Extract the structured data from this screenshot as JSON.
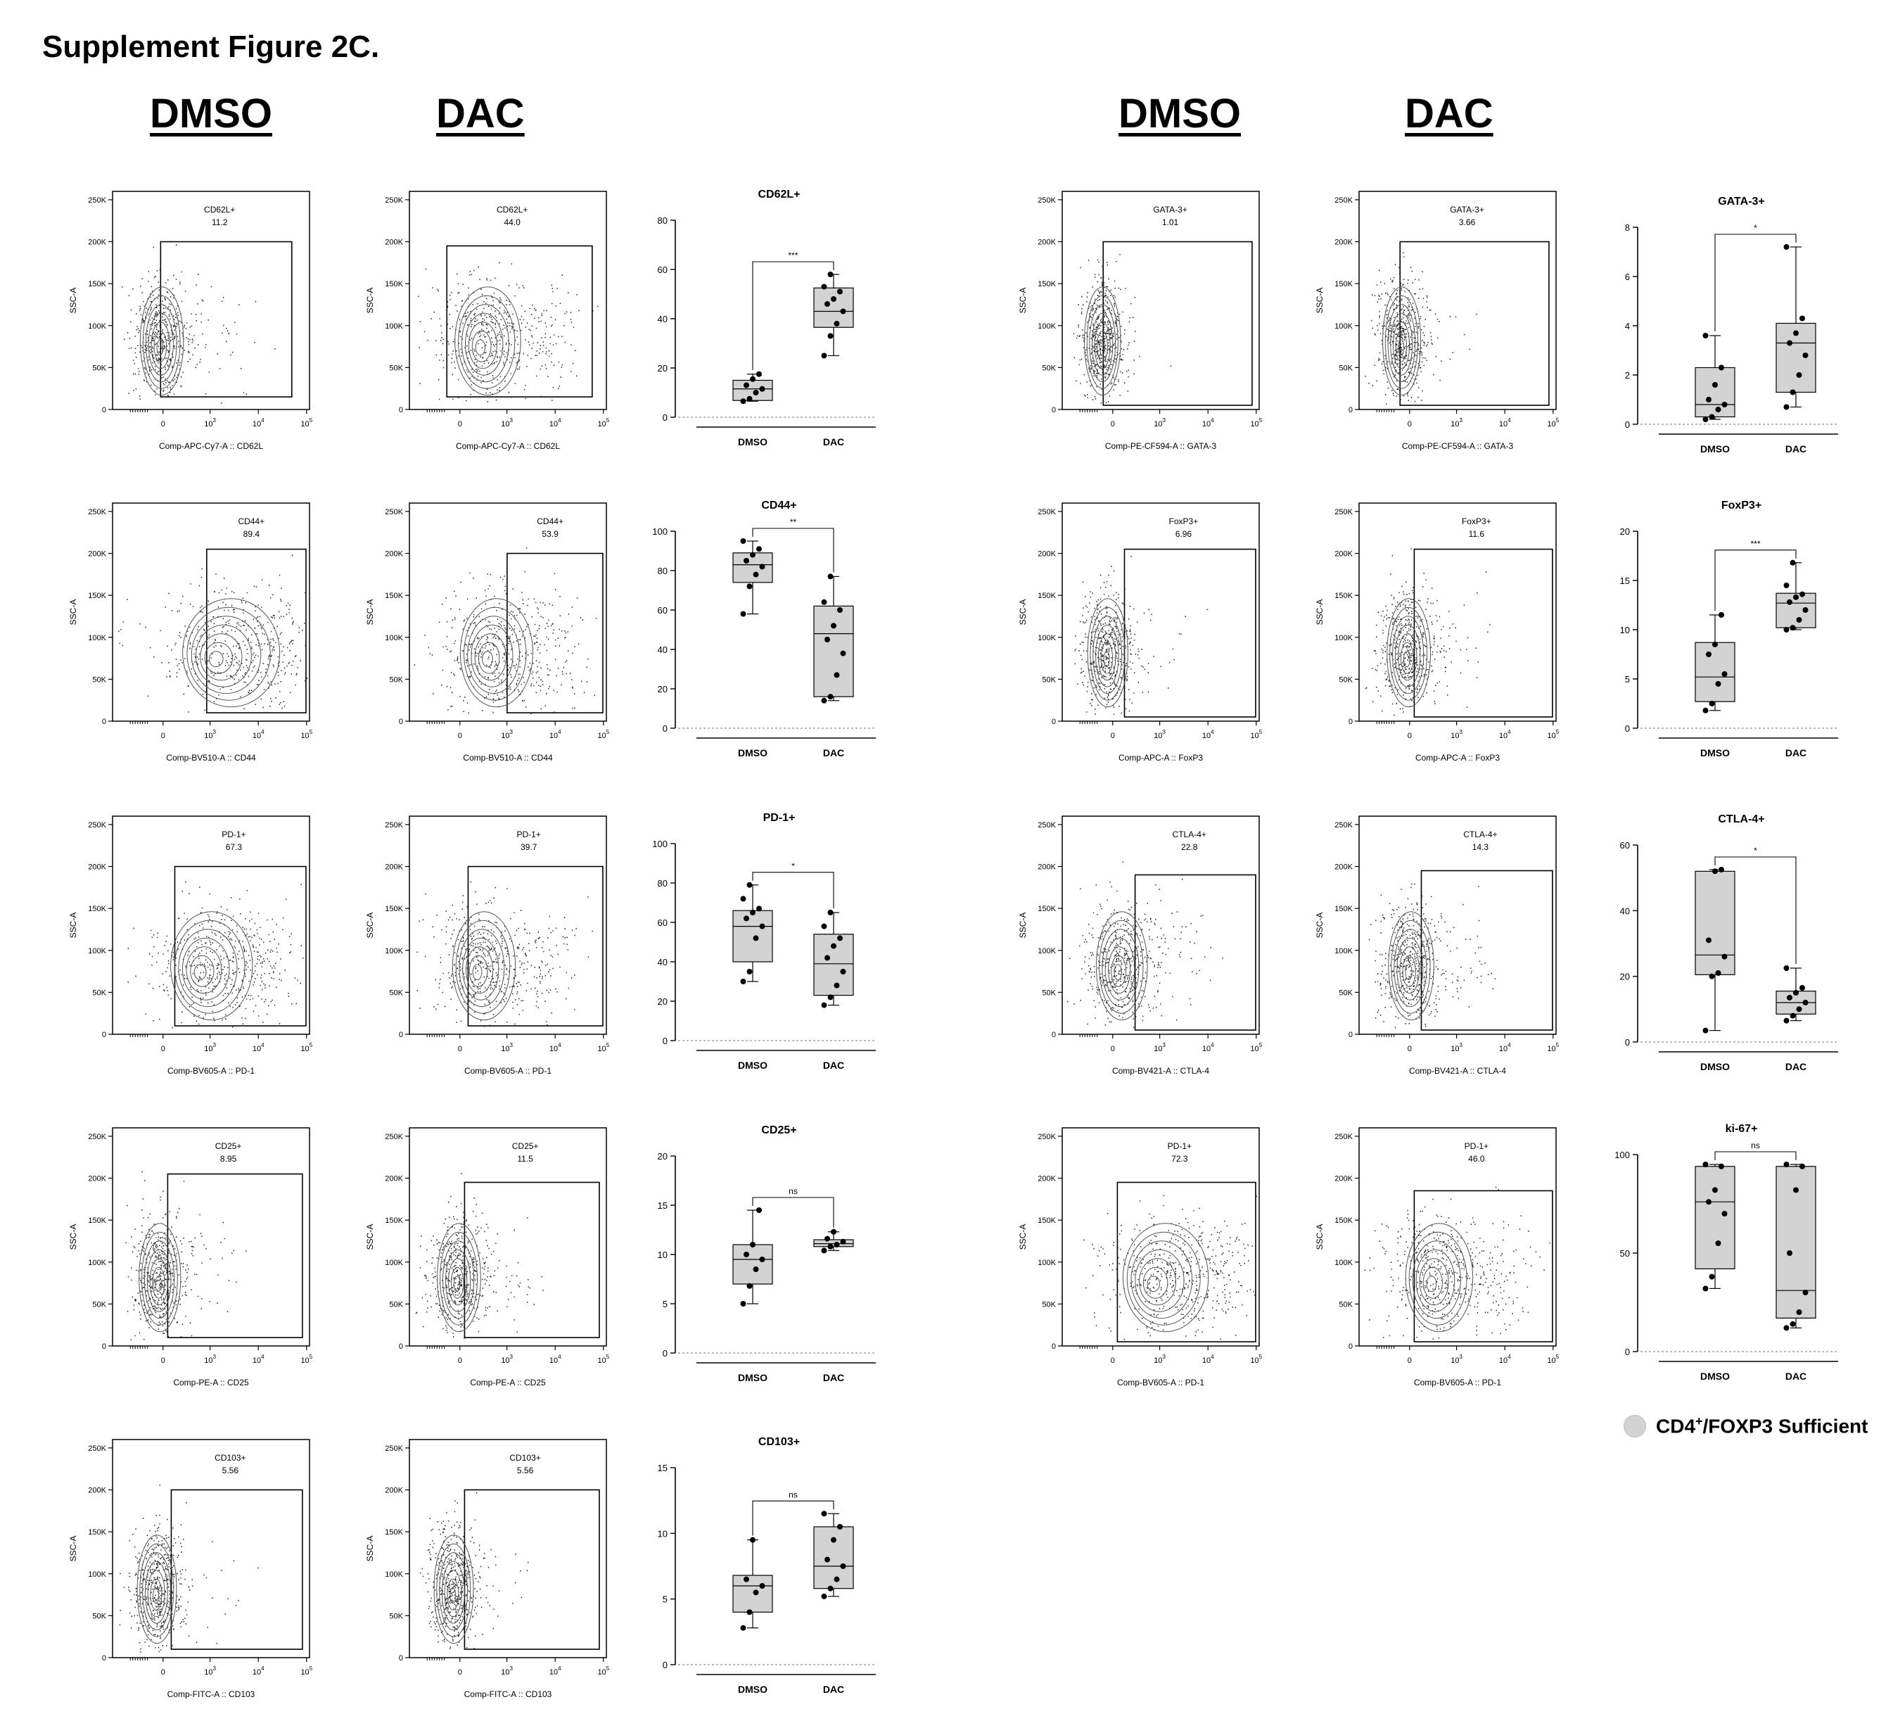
{
  "figure_title": "Supplement Figure 2C.",
  "column_headers": {
    "left_dmso": "DMSO",
    "left_dac": "DAC",
    "right_dmso": "DMSO",
    "right_dac": "DAC"
  },
  "legend": {
    "label_pre": "CD4",
    "label_sup": "+",
    "label_post": "/FOXP3 Sufficient",
    "color": "#d3d3d3"
  },
  "colors": {
    "box_fill": "#d3d3d3",
    "ink": "#000000",
    "contour": "#555555"
  },
  "flow_common": {
    "ylabel": "SSC-A",
    "y_ticks": [
      "0",
      "50K",
      "100K",
      "150K",
      "200K",
      "250K"
    ],
    "x_ticks": [
      {
        "base": "0",
        "exp": ""
      },
      {
        "base": "10",
        "exp": "3"
      },
      {
        "base": "10",
        "exp": "4"
      },
      {
        "base": "10",
        "exp": "5"
      }
    ]
  },
  "chart_data": [
    {
      "type": "box-dotplot",
      "title": "CD62L+",
      "categories": [
        "DMSO",
        "DAC"
      ],
      "ylim": [
        0,
        80
      ],
      "y_ticks": [
        0,
        20,
        40,
        60,
        80
      ],
      "significance": "***",
      "series": [
        {
          "name": "DMSO",
          "values": [
            6.5,
            7.5,
            10.0,
            11.5,
            13.0,
            15.5,
            17.5
          ],
          "box": {
            "min": 6.5,
            "q1": 6.8,
            "median": 11.5,
            "q3": 15.0,
            "max": 17.5
          }
        },
        {
          "name": "DAC",
          "values": [
            25.0,
            33.0,
            38.0,
            43.0,
            46.0,
            48.0,
            51.0,
            53.0,
            58.0
          ],
          "box": {
            "min": 25.0,
            "q1": 36.5,
            "median": 43.0,
            "q3": 52.5,
            "max": 58.0
          }
        }
      ]
    },
    {
      "type": "box-dotplot",
      "title": "CD44+",
      "categories": [
        "DMSO",
        "DAC"
      ],
      "ylim": [
        0,
        100
      ],
      "y_ticks": [
        0,
        20,
        40,
        60,
        80,
        100
      ],
      "significance": "**",
      "series": [
        {
          "name": "DMSO",
          "values": [
            58.0,
            72.0,
            78.0,
            82.0,
            85.0,
            88.0,
            91.0,
            95.0
          ],
          "box": {
            "min": 58.0,
            "q1": 74.0,
            "median": 83.0,
            "q3": 89.0,
            "max": 95.0
          }
        },
        {
          "name": "DAC",
          "values": [
            14.0,
            16.0,
            27.0,
            38.0,
            45.0,
            52.0,
            60.0,
            64.0,
            77.0
          ],
          "box": {
            "min": 14.0,
            "q1": 16.0,
            "median": 48.0,
            "q3": 62.0,
            "max": 77.0
          }
        }
      ]
    },
    {
      "type": "box-dotplot",
      "title": "PD-1+",
      "categories": [
        "DMSO",
        "DAC"
      ],
      "ylim": [
        0,
        100
      ],
      "y_ticks": [
        0,
        20,
        40,
        60,
        80,
        100
      ],
      "significance": "*",
      "series": [
        {
          "name": "DMSO",
          "values": [
            30.0,
            35.0,
            52.0,
            58.0,
            62.0,
            65.0,
            67.0,
            72.0,
            79.0
          ],
          "box": {
            "min": 30.0,
            "q1": 40.0,
            "median": 58.0,
            "q3": 66.0,
            "max": 79.0
          }
        },
        {
          "name": "DAC",
          "values": [
            18.0,
            22.0,
            28.0,
            35.0,
            42.0,
            48.0,
            52.0,
            58.0,
            65.0
          ],
          "box": {
            "min": 18.0,
            "q1": 23.0,
            "median": 39.0,
            "q3": 54.0,
            "max": 65.0
          }
        }
      ]
    },
    {
      "type": "box-dotplot",
      "title": "CD25+",
      "categories": [
        "DMSO",
        "DAC"
      ],
      "ylim": [
        0,
        20
      ],
      "y_ticks": [
        0,
        5,
        10,
        15,
        20
      ],
      "significance": "ns",
      "series": [
        {
          "name": "DMSO",
          "values": [
            5.0,
            6.8,
            8.5,
            9.5,
            10.0,
            11.0,
            14.5
          ],
          "box": {
            "min": 5.0,
            "q1": 7.0,
            "median": 9.5,
            "q3": 11.0,
            "max": 14.5
          }
        },
        {
          "name": "DAC",
          "values": [
            10.4,
            10.8,
            11.0,
            11.3,
            11.6,
            12.3
          ],
          "box": {
            "min": 10.4,
            "q1": 10.8,
            "median": 11.1,
            "q3": 11.5,
            "max": 12.3
          }
        }
      ]
    },
    {
      "type": "box-dotplot",
      "title": "CD103+",
      "categories": [
        "DMSO",
        "DAC"
      ],
      "ylim": [
        0,
        15
      ],
      "y_ticks": [
        0,
        5,
        10,
        15
      ],
      "significance": "ns",
      "series": [
        {
          "name": "DMSO",
          "values": [
            2.8,
            4.0,
            5.5,
            6.0,
            6.5,
            9.5
          ],
          "box": {
            "min": 2.8,
            "q1": 4.0,
            "median": 6.0,
            "q3": 6.8,
            "max": 9.5
          }
        },
        {
          "name": "DAC",
          "values": [
            5.2,
            5.8,
            6.5,
            7.5,
            8.0,
            9.5,
            10.5,
            11.5
          ],
          "box": {
            "min": 5.2,
            "q1": 5.8,
            "median": 7.5,
            "q3": 10.5,
            "max": 11.5
          }
        }
      ]
    },
    {
      "type": "box-dotplot",
      "title": "GATA-3+",
      "categories": [
        "DMSO",
        "DAC"
      ],
      "ylim": [
        0,
        8
      ],
      "y_ticks": [
        0,
        2,
        4,
        6,
        8
      ],
      "significance": "*",
      "series": [
        {
          "name": "DMSO",
          "values": [
            0.2,
            0.3,
            0.6,
            0.8,
            1.0,
            1.6,
            2.3,
            3.6
          ],
          "box": {
            "min": 0.2,
            "q1": 0.3,
            "median": 0.8,
            "q3": 2.3,
            "max": 3.6
          }
        },
        {
          "name": "DAC",
          "values": [
            0.7,
            1.3,
            2.0,
            2.8,
            3.3,
            3.7,
            4.3,
            7.2
          ],
          "box": {
            "min": 0.7,
            "q1": 1.3,
            "median": 3.3,
            "q3": 4.1,
            "max": 7.2
          }
        }
      ]
    },
    {
      "type": "box-dotplot",
      "title": "FoxP3+",
      "categories": [
        "DMSO",
        "DAC"
      ],
      "ylim": [
        0,
        20
      ],
      "y_ticks": [
        0,
        5,
        10,
        15,
        20
      ],
      "significance": "***",
      "series": [
        {
          "name": "DMSO",
          "values": [
            1.8,
            2.5,
            4.5,
            5.5,
            7.5,
            8.5,
            11.5
          ],
          "box": {
            "min": 1.8,
            "q1": 2.7,
            "median": 5.2,
            "q3": 8.7,
            "max": 11.5
          }
        },
        {
          "name": "DAC",
          "values": [
            10.0,
            10.2,
            11.0,
            12.0,
            12.8,
            13.3,
            13.6,
            14.5,
            16.8
          ],
          "box": {
            "min": 10.0,
            "q1": 10.2,
            "median": 12.7,
            "q3": 13.7,
            "max": 16.8
          }
        }
      ]
    },
    {
      "type": "box-dotplot",
      "title": "CTLA-4+",
      "categories": [
        "DMSO",
        "DAC"
      ],
      "ylim": [
        0,
        60
      ],
      "y_ticks": [
        0,
        20,
        40,
        60
      ],
      "significance": "*",
      "series": [
        {
          "name": "DMSO",
          "values": [
            3.5,
            20.0,
            21.0,
            26.0,
            31.0,
            52.0,
            52.5
          ],
          "box": {
            "min": 3.5,
            "q1": 20.5,
            "median": 26.5,
            "q3": 52.0,
            "max": 52.5
          }
        },
        {
          "name": "DAC",
          "values": [
            6.5,
            8.0,
            10.0,
            12.0,
            13.5,
            15.0,
            16.5,
            22.5
          ],
          "box": {
            "min": 6.5,
            "q1": 8.5,
            "median": 12.0,
            "q3": 15.5,
            "max": 22.5
          }
        }
      ]
    },
    {
      "type": "box-dotplot",
      "title": "ki-67+",
      "categories": [
        "DMSO",
        "DAC"
      ],
      "ylim": [
        0,
        100
      ],
      "y_ticks": [
        0,
        50,
        100
      ],
      "significance": "ns",
      "series": [
        {
          "name": "DMSO",
          "values": [
            32.0,
            38.0,
            55.0,
            70.0,
            76.0,
            82.0,
            94.0,
            95.0
          ],
          "box": {
            "min": 32.0,
            "q1": 42.0,
            "median": 76.0,
            "q3": 94.0,
            "max": 95.0
          }
        },
        {
          "name": "DAC",
          "values": [
            12.0,
            14.0,
            20.0,
            30.0,
            50.0,
            82.0,
            94.0,
            95.0
          ],
          "box": {
            "min": 12.0,
            "q1": 17.0,
            "median": 31.0,
            "q3": 94.0,
            "max": 95.0
          }
        }
      ]
    }
  ],
  "flow_plots": [
    {
      "condition": "DMSO",
      "gate_label": "CD62L+",
      "gate_value": "11.2",
      "xlabel": "Comp-APC-Cy7-A :: CD62L",
      "gate": {
        "x0": 0.8,
        "x1": 4.5,
        "y0": 15000,
        "y1": 200000
      }
    },
    {
      "condition": "DAC",
      "gate_label": "CD62L+",
      "gate_value": "44.0",
      "xlabel": "Comp-APC-Cy7-A :: CD62L",
      "gate": {
        "x0": 0.5,
        "x1": 4.6,
        "y0": 15000,
        "y1": 195000
      }
    },
    {
      "condition": "DMSO",
      "gate_label": "GATA-3+",
      "gate_value": "1.01",
      "xlabel": "Comp-PE-CF594-A :: GATA-3",
      "gate": {
        "x0": 0.6,
        "x1": 4.8,
        "y0": 5000,
        "y1": 200000
      }
    },
    {
      "condition": "DAC",
      "gate_label": "GATA-3+",
      "gate_value": "3.66",
      "xlabel": "Comp-PE-CF594-A :: GATA-3",
      "gate": {
        "x0": 0.6,
        "x1": 4.8,
        "y0": 5000,
        "y1": 200000
      }
    },
    {
      "condition": "DMSO",
      "gate_label": "CD44+",
      "gate_value": "89.4",
      "xlabel": "Comp-BV510-A :: CD44",
      "gate": {
        "x0": 2.1,
        "x1": 4.9,
        "y0": 10000,
        "y1": 205000
      }
    },
    {
      "condition": "DAC",
      "gate_label": "CD44+",
      "gate_value": "53.9",
      "xlabel": "Comp-BV510-A :: CD44",
      "gate": {
        "x0": 2.2,
        "x1": 4.9,
        "y0": 10000,
        "y1": 200000
      }
    },
    {
      "condition": "DMSO",
      "gate_label": "FoxP3+",
      "gate_value": "6.96",
      "xlabel": "Comp-APC-A :: FoxP3",
      "gate": {
        "x0": 1.2,
        "x1": 4.9,
        "y0": 5000,
        "y1": 205000
      }
    },
    {
      "condition": "DAC",
      "gate_label": "FoxP3+",
      "gate_value": "11.6",
      "xlabel": "Comp-APC-A :: FoxP3",
      "gate": {
        "x0": 1.0,
        "x1": 4.9,
        "y0": 5000,
        "y1": 205000
      }
    },
    {
      "condition": "DMSO",
      "gate_label": "PD-1+",
      "gate_value": "67.3",
      "xlabel": "Comp-BV605-A :: PD-1",
      "gate": {
        "x0": 1.2,
        "x1": 4.9,
        "y0": 10000,
        "y1": 200000
      }
    },
    {
      "condition": "DAC",
      "gate_label": "PD-1+",
      "gate_value": "39.7",
      "xlabel": "Comp-BV605-A :: PD-1",
      "gate": {
        "x0": 1.1,
        "x1": 4.9,
        "y0": 10000,
        "y1": 200000
      }
    },
    {
      "condition": "DMSO",
      "gate_label": "CTLA-4+",
      "gate_value": "22.8",
      "xlabel": "Comp-BV421-A :: CTLA-4",
      "gate": {
        "x0": 1.5,
        "x1": 4.9,
        "y0": 5000,
        "y1": 190000
      }
    },
    {
      "condition": "DAC",
      "gate_label": "CTLA-4+",
      "gate_value": "14.3",
      "xlabel": "Comp-BV421-A :: CTLA-4",
      "gate": {
        "x0": 1.2,
        "x1": 4.9,
        "y0": 5000,
        "y1": 195000
      }
    },
    {
      "condition": "DMSO",
      "gate_label": "CD25+",
      "gate_value": "8.95",
      "xlabel": "Comp-PE-A :: CD25",
      "gate": {
        "x0": 1.0,
        "x1": 4.8,
        "y0": 10000,
        "y1": 205000
      }
    },
    {
      "condition": "DAC",
      "gate_label": "CD25+",
      "gate_value": "11.5",
      "xlabel": "Comp-PE-A :: CD25",
      "gate": {
        "x0": 1.0,
        "x1": 4.8,
        "y0": 10000,
        "y1": 195000
      }
    },
    {
      "condition": "DMSO",
      "gate_label": "PD-1+",
      "gate_value": "72.3",
      "xlabel": "Comp-BV605-A :: PD-1",
      "gate": {
        "x0": 1.0,
        "x1": 4.9,
        "y0": 5000,
        "y1": 195000
      }
    },
    {
      "condition": "DAC",
      "gate_label": "PD-1+",
      "gate_value": "46.0",
      "xlabel": "Comp-BV605-A :: PD-1",
      "gate": {
        "x0": 1.0,
        "x1": 4.9,
        "y0": 5000,
        "y1": 185000
      }
    },
    {
      "condition": "DMSO",
      "gate_label": "CD103+",
      "gate_value": "5.56",
      "xlabel": "Comp-FITC-A :: CD103",
      "gate": {
        "x0": 1.1,
        "x1": 4.8,
        "y0": 10000,
        "y1": 200000
      }
    },
    {
      "condition": "DAC",
      "gate_label": "CD103+",
      "gate_value": "5.56",
      "xlabel": "Comp-FITC-A :: CD103",
      "gate": {
        "x0": 1.0,
        "x1": 4.8,
        "y0": 10000,
        "y1": 200000
      }
    }
  ]
}
